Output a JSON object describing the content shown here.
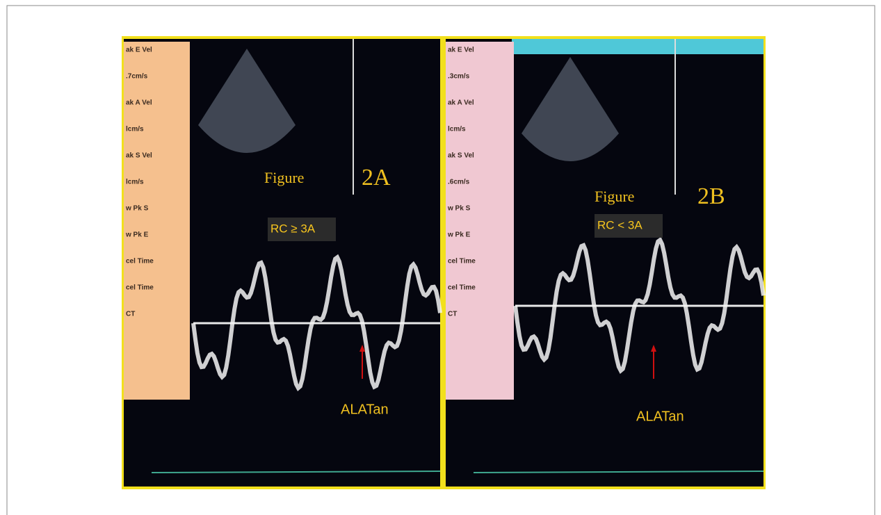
{
  "panels": [
    {
      "figure_label": "Figure",
      "panel_label": "2A",
      "condition": "RC ≥ 3A",
      "arrow_label": "ALATan",
      "sidebar": [
        "ak E Vel",
        ".7cm/s",
        "ak A Vel",
        "lcm/s",
        "ak S Vel",
        "lcm/s",
        "w Pk S",
        "w Pk E",
        "cel Time",
        "cel Time",
        "CT"
      ]
    },
    {
      "figure_label": "Figure",
      "panel_label": "2B",
      "condition": "RC < 3A",
      "arrow_label": "ALATan",
      "sidebar": [
        "ak E Vel",
        ".3cm/s",
        "ak A Vel",
        "lcm/s",
        "ak S Vel",
        ".6cm/s",
        "w Pk S",
        "w Pk E",
        "cel Time",
        "cel Time",
        "CT"
      ]
    }
  ]
}
